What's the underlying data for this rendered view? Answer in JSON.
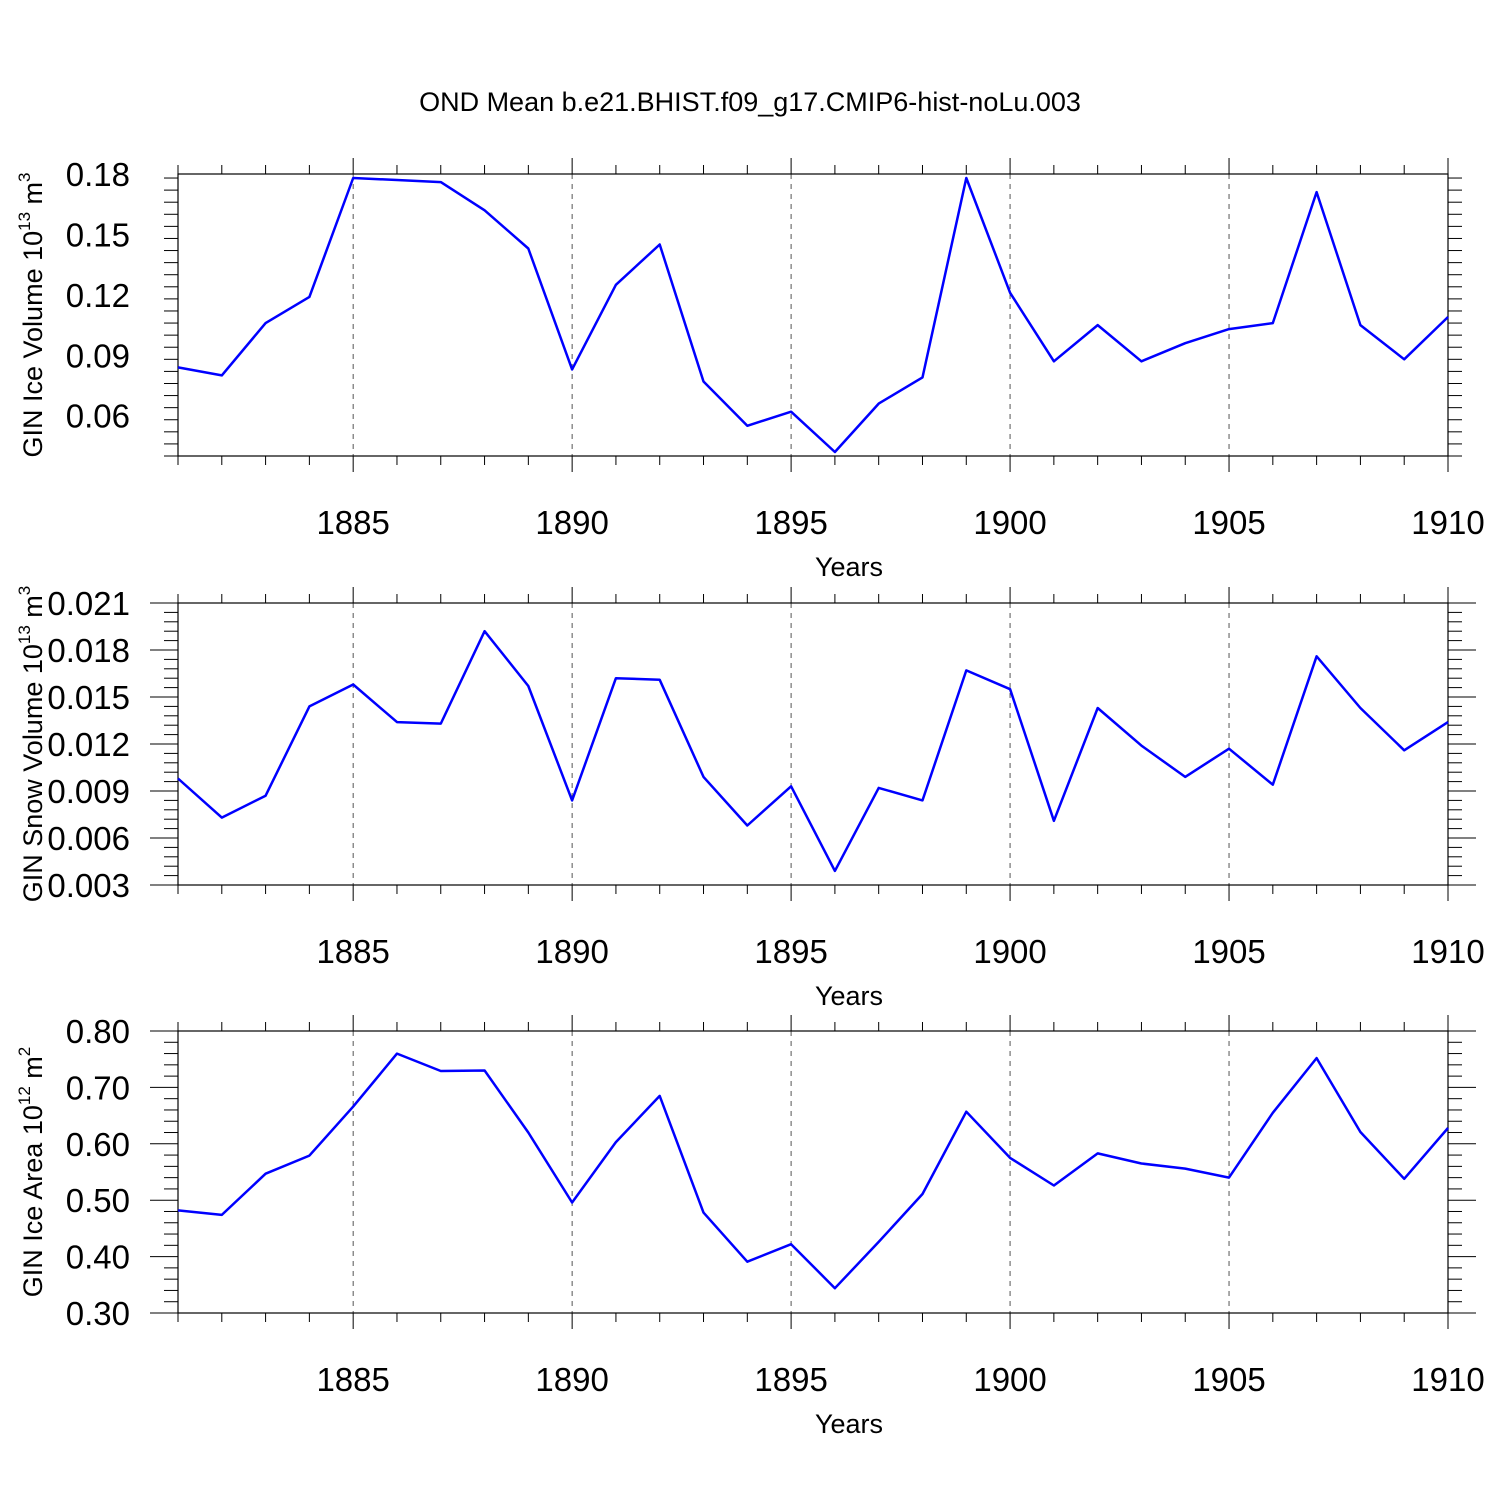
{
  "title": "OND Mean b.e21.BHIST.f09_g17.CMIP6-hist-noLu.003",
  "colors": {
    "line": "#0000ff",
    "axis": "#000000",
    "grid": "#555555"
  },
  "chart_data": [
    {
      "type": "line",
      "xlabel": "Years",
      "ylabel": "GIN Ice Volume 10",
      "ylabel_exponent": "13",
      "ylabel_unit": " m",
      "ylabel_unit_exponent": "3",
      "xlim": [
        1881,
        1910
      ],
      "ylim": [
        0.04,
        0.18
      ],
      "xticks": [
        "1885",
        "1890",
        "1895",
        "1900",
        "1905",
        "1910"
      ],
      "yticks": [
        "0.06",
        "0.09",
        "0.12",
        "0.15",
        "0.18"
      ],
      "grid": "vertical dashed at major x ticks",
      "x": [
        1881,
        1882,
        1883,
        1884,
        1885,
        1886,
        1887,
        1888,
        1889,
        1890,
        1891,
        1892,
        1893,
        1894,
        1895,
        1896,
        1897,
        1898,
        1899,
        1900,
        1901,
        1902,
        1903,
        1904,
        1905,
        1906,
        1907,
        1908,
        1909,
        1910
      ],
      "values": [
        0.084,
        0.08,
        0.106,
        0.119,
        0.178,
        0.177,
        0.176,
        0.162,
        0.143,
        0.083,
        0.125,
        0.145,
        0.077,
        0.055,
        0.062,
        0.042,
        0.066,
        0.079,
        0.178,
        0.121,
        0.087,
        0.105,
        0.087,
        0.096,
        0.103,
        0.106,
        0.171,
        0.105,
        0.088,
        0.109
      ]
    },
    {
      "type": "line",
      "xlabel": "Years",
      "ylabel": "GIN Snow Volume 10",
      "ylabel_exponent": "13",
      "ylabel_unit": " m",
      "ylabel_unit_exponent": "3",
      "xlim": [
        1881,
        1910
      ],
      "ylim": [
        0.003,
        0.021
      ],
      "xticks": [
        "1885",
        "1890",
        "1895",
        "1900",
        "1905",
        "1910"
      ],
      "yticks": [
        "0.003",
        "0.006",
        "0.009",
        "0.012",
        "0.015",
        "0.018",
        "0.021"
      ],
      "grid": "vertical dashed at major x ticks",
      "x": [
        1881,
        1882,
        1883,
        1884,
        1885,
        1886,
        1887,
        1888,
        1889,
        1890,
        1891,
        1892,
        1893,
        1894,
        1895,
        1896,
        1897,
        1898,
        1899,
        1900,
        1901,
        1902,
        1903,
        1904,
        1905,
        1906,
        1907,
        1908,
        1909,
        1910
      ],
      "values": [
        0.0098,
        0.0073,
        0.0087,
        0.0144,
        0.0158,
        0.0134,
        0.0133,
        0.0192,
        0.0157,
        0.0084,
        0.0162,
        0.0161,
        0.0099,
        0.0068,
        0.0093,
        0.0039,
        0.0092,
        0.0084,
        0.0167,
        0.0155,
        0.0071,
        0.0143,
        0.0119,
        0.0099,
        0.0117,
        0.0094,
        0.0176,
        0.0143,
        0.0116,
        0.0134
      ]
    },
    {
      "type": "line",
      "xlabel": "Years",
      "ylabel": "GIN Ice Area 10",
      "ylabel_exponent": "12",
      "ylabel_unit": " m",
      "ylabel_unit_exponent": "2",
      "xlim": [
        1881,
        1910
      ],
      "ylim": [
        0.3,
        0.8
      ],
      "xticks": [
        "1885",
        "1890",
        "1895",
        "1900",
        "1905",
        "1910"
      ],
      "yticks": [
        "0.30",
        "0.40",
        "0.50",
        "0.60",
        "0.70",
        "0.80"
      ],
      "grid": "vertical dashed at major x ticks",
      "x": [
        1881,
        1882,
        1883,
        1884,
        1885,
        1886,
        1887,
        1888,
        1889,
        1890,
        1891,
        1892,
        1893,
        1894,
        1895,
        1896,
        1897,
        1898,
        1899,
        1900,
        1901,
        1902,
        1903,
        1904,
        1905,
        1906,
        1907,
        1908,
        1909,
        1910
      ],
      "values": [
        0.482,
        0.474,
        0.547,
        0.579,
        0.666,
        0.76,
        0.729,
        0.73,
        0.62,
        0.496,
        0.603,
        0.685,
        0.478,
        0.391,
        0.422,
        0.344,
        0.426,
        0.511,
        0.657,
        0.575,
        0.526,
        0.583,
        0.565,
        0.556,
        0.54,
        0.655,
        0.752,
        0.621,
        0.538,
        0.628
      ]
    }
  ]
}
